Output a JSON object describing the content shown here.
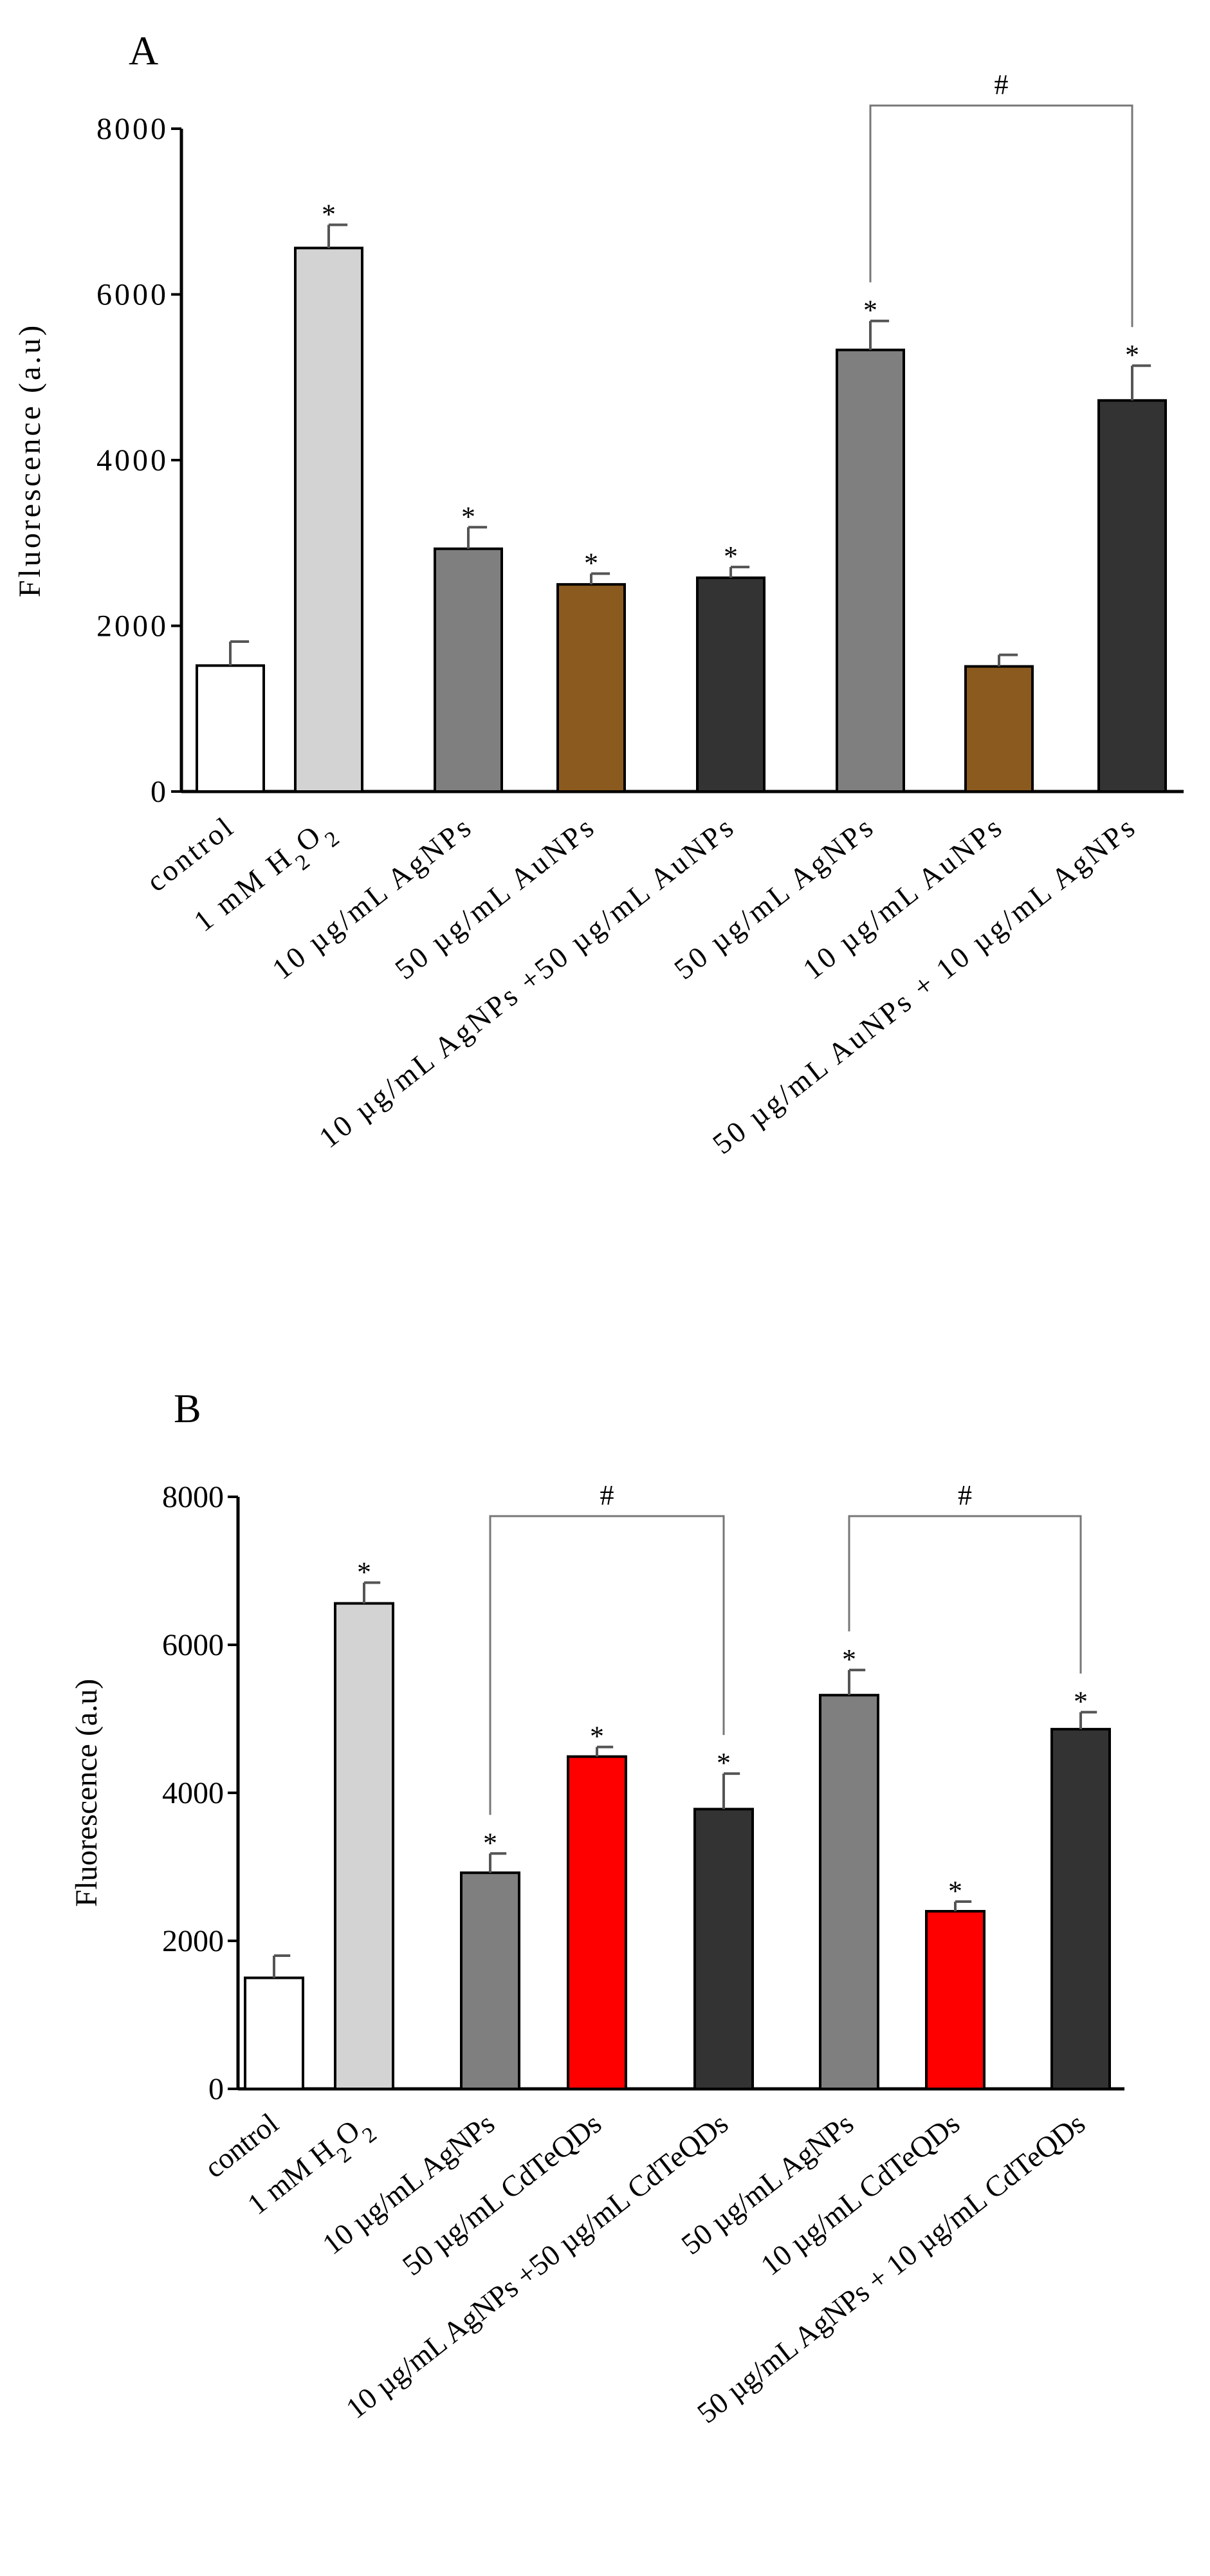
{
  "chart_data": [
    {
      "type": "bar",
      "panel_label": "A",
      "title": "",
      "xlabel": "",
      "ylabel": "Fluorescence (a.u)",
      "ylim": [
        0,
        8000
      ],
      "yticks": [
        "0",
        "2000",
        "4000",
        "6000",
        "8000"
      ],
      "grid": false,
      "categories": [
        "control",
        "1 mM H2O2",
        "10 µg/mL AgNPs",
        "50 µg/mL AuNPs",
        "10 µg/mL AgNPs +50 µg/mL AuNPs",
        "50 µg/mL AgNPs",
        "10 µg/mL AuNPs",
        "50 µg/mL AuNPs + 10 µg/mL AgNPs"
      ],
      "values": [
        1520,
        6560,
        2930,
        2500,
        2580,
        5330,
        1510,
        4720
      ],
      "errors": [
        290,
        280,
        260,
        130,
        130,
        350,
        140,
        420
      ],
      "bar_colors": [
        "#ffffff",
        "#d3d3d3",
        "#7f7f7f",
        "#8b5a1e",
        "#333333",
        "#7f7f7f",
        "#8b5a1e",
        "#333333"
      ],
      "significance": [
        "",
        "*",
        "*",
        "*",
        "*",
        "*",
        "",
        "*"
      ],
      "brackets": [
        {
          "from": 5,
          "to": 7,
          "label": "#"
        }
      ]
    },
    {
      "type": "bar",
      "panel_label": "B",
      "title": "",
      "xlabel": "",
      "ylabel": "Fluorescence (a.u)",
      "ylim": [
        0,
        8000
      ],
      "yticks": [
        "0",
        "2000",
        "4000",
        "6000",
        "8000"
      ],
      "grid": false,
      "categories": [
        "control",
        "1 mM H2O2",
        "10 µg/mL AgNPs",
        "50 µg/mL CdTeQDs",
        "10 µg/mL AgNPs +50 µg/mL CdTeQDs",
        "50 µg/mL AgNPs",
        "10 µg/mL CdTeQDs",
        "50 µg/mL AgNPs + 10 µg/mL CdTeQDs"
      ],
      "values": [
        1500,
        6560,
        2920,
        4490,
        3780,
        5320,
        2400,
        4860
      ],
      "errors": [
        300,
        280,
        260,
        130,
        480,
        340,
        130,
        230
      ],
      "bar_colors": [
        "#ffffff",
        "#d3d3d3",
        "#7f7f7f",
        "#ff0000",
        "#333333",
        "#7f7f7f",
        "#ff0000",
        "#333333"
      ],
      "significance": [
        "",
        "*",
        "*",
        "*",
        "*",
        "*",
        "*",
        "*"
      ],
      "brackets": [
        {
          "from": 2,
          "to": 4,
          "label": "#"
        },
        {
          "from": 5,
          "to": 7,
          "label": "#"
        }
      ]
    }
  ]
}
